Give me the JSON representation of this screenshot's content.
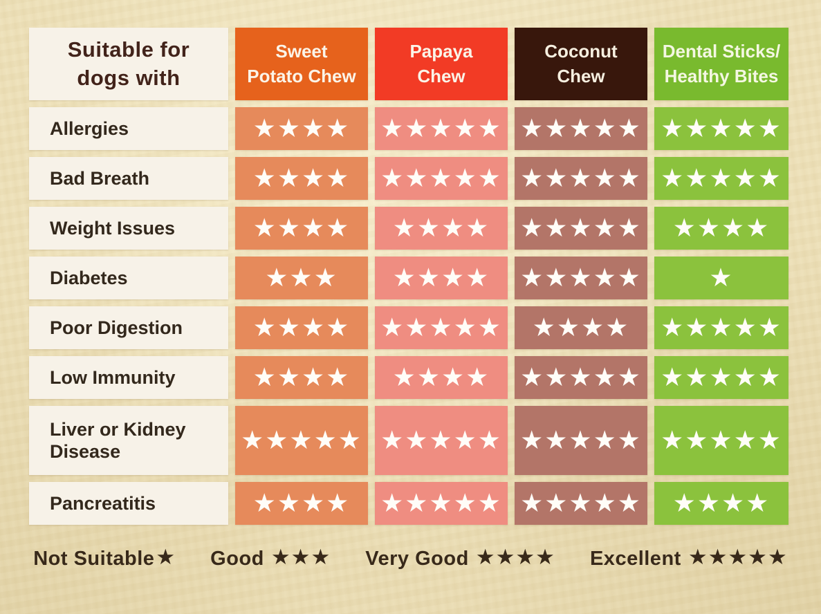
{
  "page": {
    "background": "#EDE0B8"
  },
  "table": {
    "corner_label": "Suitable for\ndogs with",
    "corner_text_color": "#42231A",
    "label_cell_bg": "#F7F2E8",
    "label_text_color": "#33281C",
    "star_color": "#FFFDF8",
    "columns": [
      {
        "label": "Sweet\nPotato Chew",
        "header_bg": "#E6621C",
        "header_text_color": "#FBF4E8",
        "cell_bg": "#E68A5B"
      },
      {
        "label": "Papaya\nChew",
        "header_bg": "#F23B25",
        "header_text_color": "#FBF4E8",
        "cell_bg": "#EF8D81"
      },
      {
        "label": "Coconut\nChew",
        "header_bg": "#38170C",
        "header_text_color": "#F6EFE0",
        "cell_bg": "#B37568"
      },
      {
        "label": "Dental Sticks/\nHealthy Bites",
        "header_bg": "#79BA2E",
        "header_text_color": "#F4F7E2",
        "cell_bg": "#8BC23D"
      }
    ],
    "rows": [
      {
        "label": "Allergies",
        "ratings": [
          4,
          5,
          5,
          5
        ]
      },
      {
        "label": "Bad Breath",
        "ratings": [
          4,
          5,
          5,
          5
        ]
      },
      {
        "label": "Weight Issues",
        "ratings": [
          4,
          4,
          5,
          4
        ]
      },
      {
        "label": "Diabetes",
        "ratings": [
          3,
          4,
          5,
          1
        ]
      },
      {
        "label": "Poor Digestion",
        "ratings": [
          4,
          5,
          4,
          5
        ]
      },
      {
        "label": "Low Immunity",
        "ratings": [
          4,
          4,
          5,
          5
        ]
      },
      {
        "label": "Liver or Kidney Disease",
        "ratings": [
          5,
          5,
          5,
          5
        ]
      },
      {
        "label": "Pancreatitis",
        "ratings": [
          4,
          5,
          5,
          4
        ]
      }
    ]
  },
  "legend": {
    "text_color": "#38291A",
    "items": [
      {
        "label": "Not Suitable",
        "stars": 1
      },
      {
        "label": "Good",
        "stars": 3
      },
      {
        "label": "Very Good",
        "stars": 4
      },
      {
        "label": "Excellent",
        "stars": 5
      }
    ]
  },
  "star_char": "★",
  "chart_data": {
    "type": "table",
    "title": "Suitable for dogs with",
    "columns": [
      "Sweet Potato Chew",
      "Papaya Chew",
      "Coconut Chew",
      "Dental Sticks/ Healthy Bites"
    ],
    "categories": [
      "Allergies",
      "Bad Breath",
      "Weight Issues",
      "Diabetes",
      "Poor Digestion",
      "Low Immunity",
      "Liver or Kidney Disease",
      "Pancreatitis"
    ],
    "series": [
      {
        "name": "Sweet Potato Chew",
        "values": [
          4,
          4,
          4,
          3,
          4,
          4,
          5,
          4
        ]
      },
      {
        "name": "Papaya Chew",
        "values": [
          5,
          5,
          4,
          4,
          5,
          4,
          5,
          5
        ]
      },
      {
        "name": "Coconut Chew",
        "values": [
          5,
          5,
          5,
          5,
          4,
          5,
          5,
          5
        ]
      },
      {
        "name": "Dental Sticks/ Healthy Bites",
        "values": [
          5,
          5,
          4,
          1,
          5,
          5,
          5,
          4
        ]
      }
    ],
    "value_scale": {
      "1": "Not Suitable",
      "3": "Good",
      "4": "Very Good",
      "5": "Excellent"
    },
    "value_unit": "stars",
    "value_range": [
      1,
      5
    ],
    "legend_position": "bottom"
  }
}
